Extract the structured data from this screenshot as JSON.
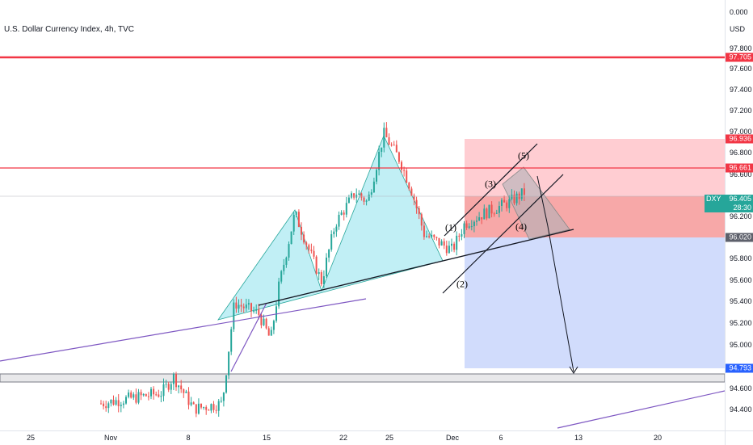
{
  "title": "U.S. Dollar Currency Index, 4h, TVC",
  "currency": "USD",
  "colors": {
    "up": "#26a69a",
    "down": "#ef5350",
    "red_line": "#f23645",
    "stop_zone": "#ffcdd2",
    "stop_zone_dark": "#f7a8a8",
    "target_zone": "#d1dcfc",
    "pattern_fill": "#b2ebf2",
    "trend_purple": "#7e57c2",
    "target_tag": "#2962ff",
    "neutral_tag": "#5d606b"
  },
  "price_ticks": [
    "0.000",
    "97.800",
    "97.600",
    "97.400",
    "97.200",
    "97.000",
    "96.800",
    "96.600",
    "96.200",
    "95.800",
    "95.600",
    "95.400",
    "95.200",
    "95.000",
    "94.600",
    "94.400"
  ],
  "time_ticks": [
    "25",
    "Nov",
    "8",
    "15",
    "22",
    "25",
    "Dec",
    "6",
    "13",
    "20"
  ],
  "price_tags": [
    {
      "label": "97.705",
      "color": "#f23645"
    },
    {
      "label": "96.936",
      "color": "#f23645"
    },
    {
      "label": "96.661",
      "color": "#f23645"
    },
    {
      "label": "96.020",
      "color": "#5d606b"
    },
    {
      "label": "94.793",
      "color": "#2962ff"
    }
  ],
  "current": {
    "symbol": "DXY",
    "price": "96.405",
    "countdown": "28:30"
  },
  "wave_labels": [
    "(1)",
    "(2)",
    "(3)",
    "(4)",
    "(5)"
  ]
}
